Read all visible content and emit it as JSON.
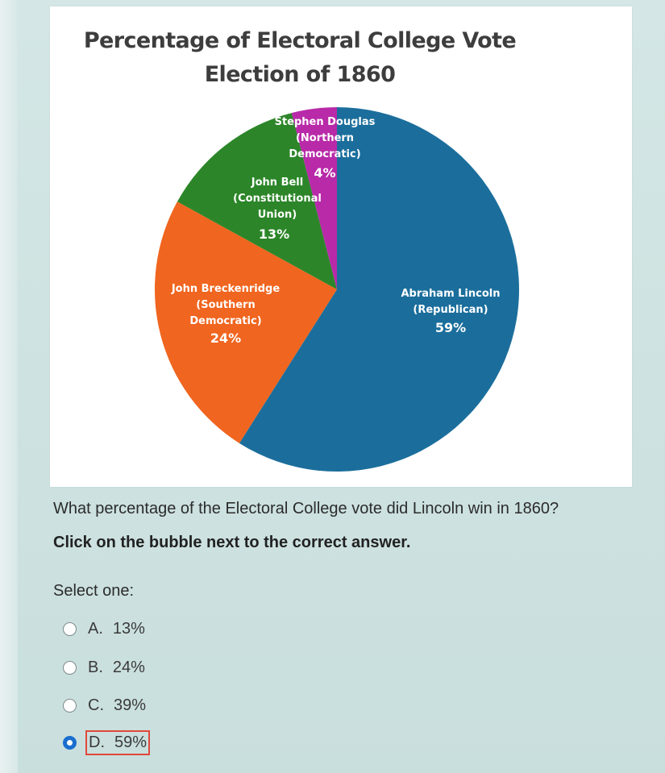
{
  "chart_data": {
    "type": "pie",
    "title_lines": [
      "Percentage of Electoral College Vote",
      "Election of 1860"
    ],
    "slices": [
      {
        "label_lines": [
          "Abraham Lincoln",
          "(Republican)"
        ],
        "value": 59,
        "value_label": "59%",
        "color": "#1b6e9c"
      },
      {
        "label_lines": [
          "John Breckenridge",
          "(Southern",
          "Democratic)"
        ],
        "value": 24,
        "value_label": "24%",
        "color": "#f0651f"
      },
      {
        "label_lines": [
          "John Bell",
          "(Constitutional",
          "Union)"
        ],
        "value": 13,
        "value_label": "13%",
        "color": "#2c8629"
      },
      {
        "label_lines": [
          "Stephen Douglas",
          "(Northern",
          "Democratic)"
        ],
        "value": 4,
        "value_label": "4%",
        "color": "#b82aa8"
      }
    ]
  },
  "question": {
    "text": "What percentage of the Electoral College vote did Lincoln win in 1860?",
    "instruction": "Click on the bubble next to the correct answer.",
    "select_label": "Select one:",
    "options": [
      {
        "letter": "A.",
        "text": "13%",
        "selected": false
      },
      {
        "letter": "B.",
        "text": "24%",
        "selected": false
      },
      {
        "letter": "C.",
        "text": "39%",
        "selected": false
      },
      {
        "letter": "D.",
        "text": "59%",
        "selected": true
      }
    ]
  },
  "colors": {
    "background": "#cfe3e2",
    "selected_radio": "#1a6ecf",
    "answer_highlight": "#e0483a"
  }
}
